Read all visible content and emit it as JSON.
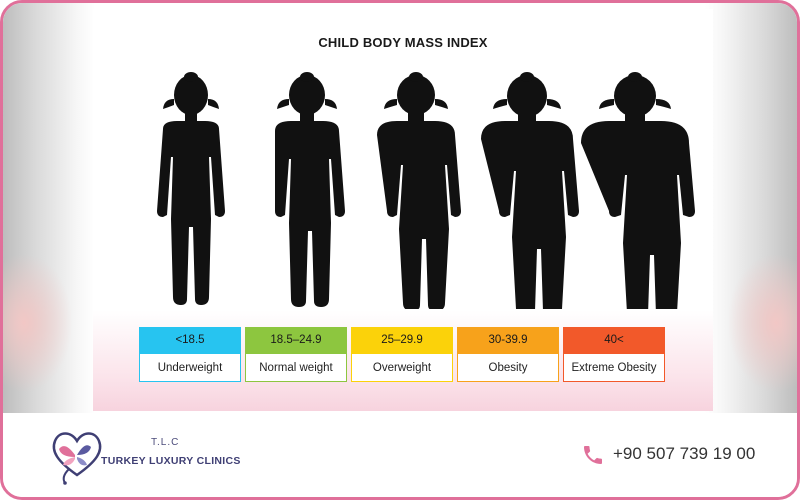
{
  "poster": {
    "title": "CHILD BODY MASS INDEX",
    "categories": [
      {
        "range": "<18.5",
        "label": "Underweight",
        "color": "#27c4f0"
      },
      {
        "range": "18.5–24.9",
        "label": "Normal weight",
        "color": "#8dc63f"
      },
      {
        "range": "25–29.9",
        "label": "Overweight",
        "color": "#fbd20a"
      },
      {
        "range": "30-39.9",
        "label": "Obesity",
        "color": "#f7a21b"
      },
      {
        "range": "40<",
        "label": "Extreme Obesity",
        "color": "#f2592a"
      }
    ]
  },
  "footer": {
    "brand_top": "T.L.C",
    "brand_name": "TURKEY LUXURY CLINICS",
    "phone": "+90 507 739 19 00",
    "phone_icon_color": "#e0709a",
    "brand_color": "#3f3f74"
  },
  "icons": [
    "heart-stethoscope-logo-icon",
    "butterfly-icon",
    "phone-icon"
  ]
}
